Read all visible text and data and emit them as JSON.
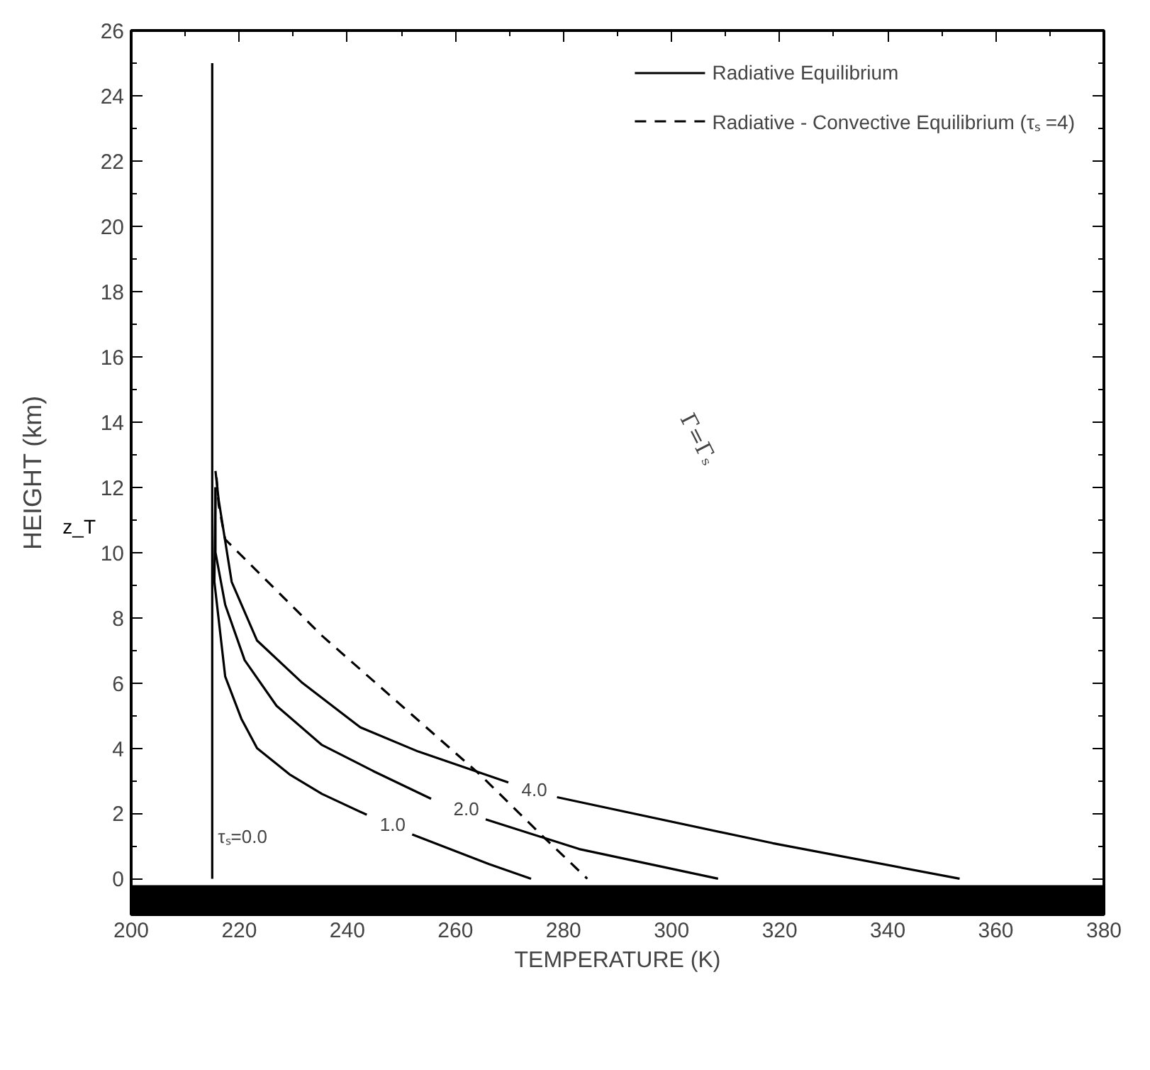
{
  "chart_data": {
    "type": "line",
    "xlabel": "TEMPERATURE (K)",
    "ylabel": "HEIGHT (km)",
    "xlim": [
      200,
      380
    ],
    "xticks": [
      200,
      220,
      240,
      260,
      280,
      300,
      320,
      340,
      360,
      380
    ],
    "ylim": [
      -1.1,
      26
    ],
    "yticks": [
      0,
      2,
      4,
      6,
      8,
      10,
      12,
      14,
      16,
      18,
      20,
      22,
      24,
      26
    ],
    "grid": false,
    "legend": "top right",
    "marker": "none",
    "series": [
      {
        "name": "Radiative Equilibrium",
        "color": "#000000",
        "line_style": "solid",
        "x": [
          215,
          215
        ],
        "values": [
          0,
          25
        ]
      },
      {
        "name": "1.0",
        "color": "#000000",
        "line_style": "solid",
        "x": [
          215.6,
          215.4,
          217.4,
          220.4,
          223.3,
          229.3,
          235.3,
          243.6,
          248.4,
          252,
          266.2,
          274
        ],
        "values": [
          12,
          9.1,
          6.2,
          4.9,
          4.0,
          3.2,
          2.6,
          1.96,
          null,
          1.36,
          0.45,
          0
        ]
      },
      {
        "name": "2.0",
        "color": "#000000",
        "line_style": "solid",
        "x": [
          215.6,
          215.6,
          217.4,
          221,
          226.9,
          235.3,
          244.8,
          255.5,
          262,
          265.6,
          282.9,
          308.6
        ],
        "values": [
          12,
          10,
          8.4,
          6.7,
          5.3,
          4.1,
          3.3,
          2.45,
          null,
          1.82,
          0.91,
          0
        ]
      },
      {
        "name": "4.0",
        "color": "#000000",
        "line_style": "solid",
        "x": [
          215.6,
          216.2,
          218.6,
          223.3,
          231.7,
          242.4,
          253.1,
          269.8,
          274.6,
          278.8,
          318.7,
          353.3
        ],
        "values": [
          12.5,
          11.6,
          9.1,
          7.3,
          6.0,
          4.64,
          3.9,
          2.95,
          null,
          2.5,
          1.09,
          0
        ]
      },
      {
        "name": "Radiative - Convective Equilibrium (τₛ =4)",
        "color": "#000000",
        "line_style": "dashed",
        "x": [
          215.8,
          216.2,
          217.4,
          235.3,
          264.5,
          275.8,
          284.4
        ],
        "values": [
          12.3,
          11.45,
          10.4,
          7.45,
          3.2,
          1.36,
          0
        ]
      }
    ],
    "bands": [
      {
        "axis": "y",
        "from": -1.1,
        "to": -0.2,
        "color": "#000000"
      }
    ],
    "annotations": [
      "τₛ=0.0",
      "Γ=Γₛ",
      "z_T"
    ]
  }
}
